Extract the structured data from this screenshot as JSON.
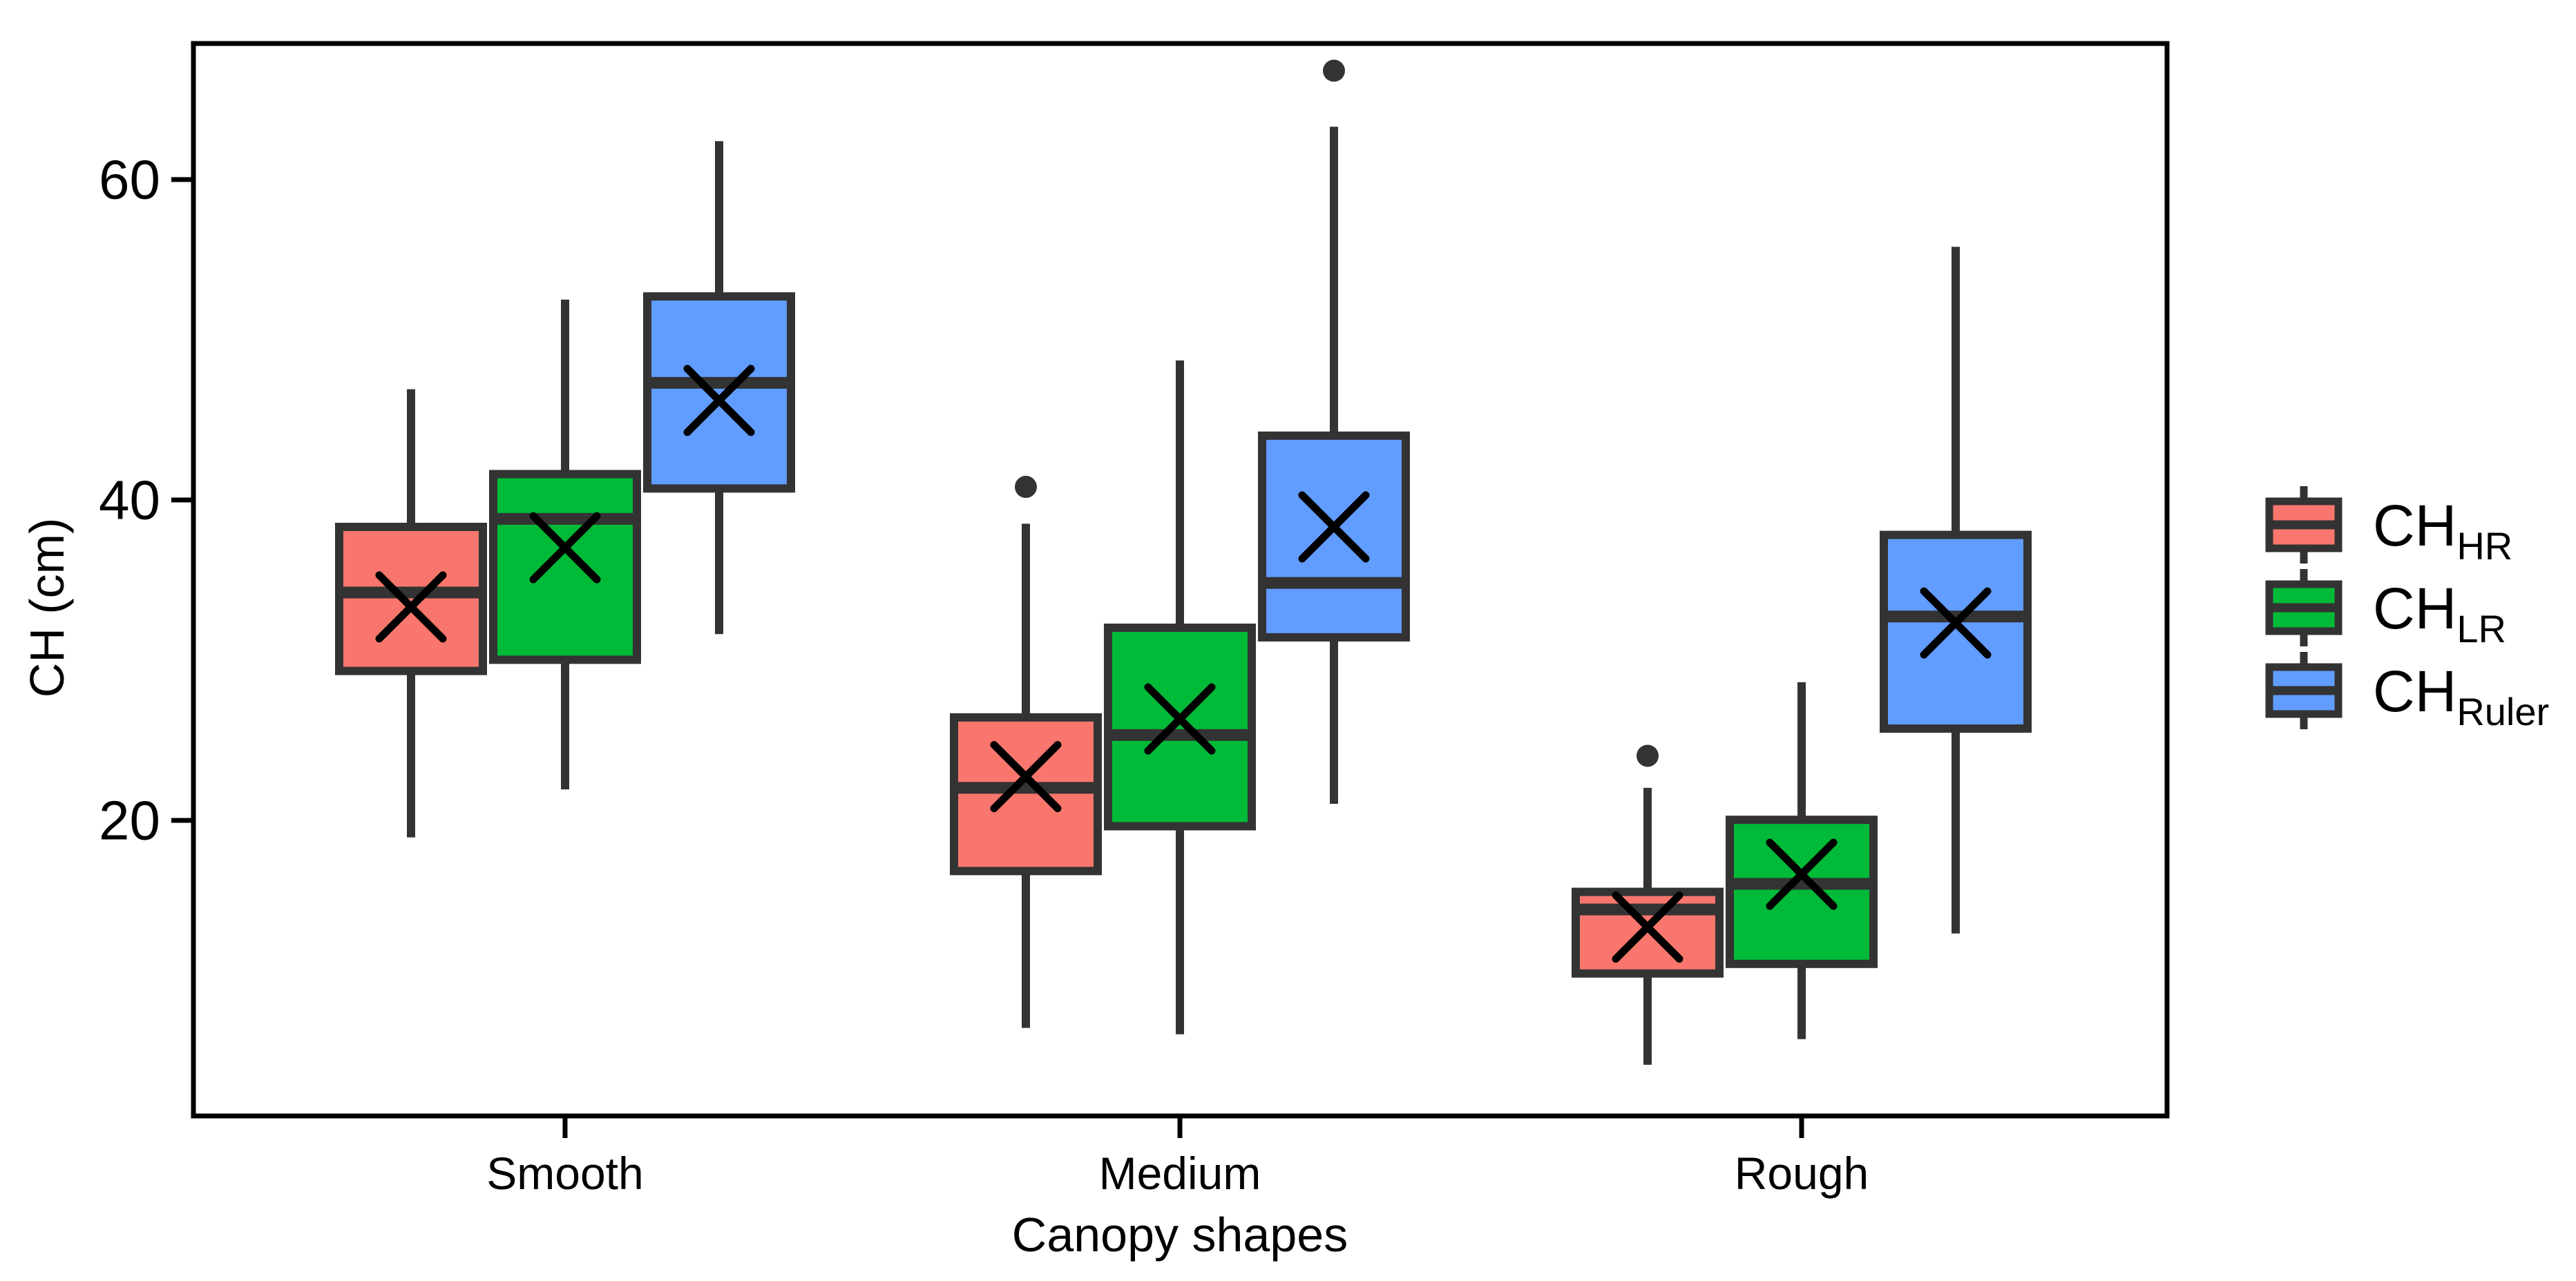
{
  "figure": {
    "background": "#FFFFFF",
    "axis_color": "#000000",
    "box_stroke_color": "#333333",
    "mean_marker": "x-cross",
    "outlier_marker": "dot"
  },
  "chart_data": {
    "type": "boxplot",
    "title": "",
    "xlabel": "Canopy shapes",
    "ylabel": "CH (cm)",
    "categories": [
      "Smooth",
      "Medium",
      "Rough"
    ],
    "y_tick_labels": [
      "20",
      "40",
      "60"
    ],
    "y_ticks": [
      20,
      40,
      60
    ],
    "ylim": [
      1.5,
      68.5
    ],
    "grid": false,
    "legend_position": "right",
    "series": [
      {
        "name": "CH_HR",
        "label_main": "CH",
        "label_sub": "HR",
        "color": "#F8766D",
        "boxes": [
          {
            "category": "Smooth",
            "whisker_low": 18.9,
            "q1": 29.3,
            "median": 34.2,
            "q3": 38.3,
            "whisker_high": 46.9,
            "mean": 33.3,
            "outliers": []
          },
          {
            "category": "Medium",
            "whisker_low": 7.0,
            "q1": 16.8,
            "median": 22.0,
            "q3": 26.4,
            "whisker_high": 38.5,
            "mean": 22.7,
            "outliers": [
              40.8
            ]
          },
          {
            "category": "Rough",
            "whisker_low": 4.7,
            "q1": 10.4,
            "median": 14.4,
            "q3": 15.5,
            "whisker_high": 22.0,
            "mean": 13.3,
            "outliers": [
              24.0
            ]
          }
        ]
      },
      {
        "name": "CH_LR",
        "label_main": "CH",
        "label_sub": "LR",
        "color": "#00BA38",
        "boxes": [
          {
            "category": "Smooth",
            "whisker_low": 21.9,
            "q1": 30.0,
            "median": 38.8,
            "q3": 41.6,
            "whisker_high": 52.5,
            "mean": 37.0,
            "outliers": []
          },
          {
            "category": "Medium",
            "whisker_low": 6.6,
            "q1": 19.6,
            "median": 25.3,
            "q3": 32.0,
            "whisker_high": 48.7,
            "mean": 26.3,
            "outliers": []
          },
          {
            "category": "Rough",
            "whisker_low": 6.3,
            "q1": 11.0,
            "median": 16.0,
            "q3": 20.0,
            "whisker_high": 28.6,
            "mean": 16.6,
            "outliers": []
          }
        ]
      },
      {
        "name": "CH_Ruler",
        "label_main": "CH",
        "label_sub": "Ruler",
        "color": "#619CFF",
        "boxes": [
          {
            "category": "Smooth",
            "whisker_low": 31.6,
            "q1": 40.7,
            "median": 47.3,
            "q3": 52.7,
            "whisker_high": 62.4,
            "mean": 46.2,
            "outliers": []
          },
          {
            "category": "Medium",
            "whisker_low": 21.0,
            "q1": 31.4,
            "median": 34.8,
            "q3": 44.0,
            "whisker_high": 63.3,
            "mean": 38.3,
            "outliers": [
              66.8
            ]
          },
          {
            "category": "Rough",
            "whisker_low": 12.9,
            "q1": 25.7,
            "median": 32.7,
            "q3": 37.8,
            "whisker_high": 55.8,
            "mean": 32.3,
            "outliers": []
          }
        ]
      }
    ]
  }
}
